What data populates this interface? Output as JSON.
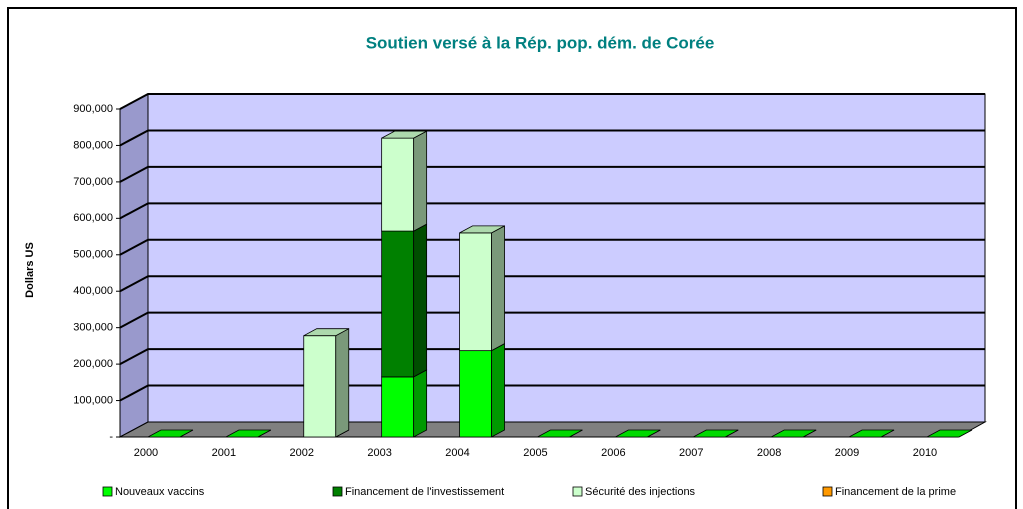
{
  "chart_data": {
    "type": "bar3d_stacked",
    "title": "Soutien versé à la Rép. pop. dém. de Corée",
    "ylabel": "Dollars US",
    "categories": [
      "2000",
      "2001",
      "2002",
      "2003",
      "2004",
      "2005",
      "2006",
      "2007",
      "2008",
      "2009",
      "2010"
    ],
    "series": [
      {
        "name": "Nouveaux vaccins",
        "color": "#00ff00",
        "values": [
          0,
          0,
          0,
          165000,
          237000,
          0,
          0,
          0,
          0,
          0,
          0
        ]
      },
      {
        "name": "Financement de l'investissement",
        "color": "#008000",
        "values": [
          0,
          0,
          0,
          400000,
          0,
          0,
          0,
          0,
          0,
          0,
          0
        ]
      },
      {
        "name": "Sécurité des injections",
        "color": "#ccffcc",
        "values": [
          0,
          0,
          278000,
          255000,
          323000,
          0,
          0,
          0,
          0,
          0,
          0
        ]
      },
      {
        "name": "Financement de la prime",
        "color": "#ff9900",
        "values": [
          0,
          0,
          0,
          0,
          0,
          0,
          0,
          0,
          0,
          0,
          0
        ]
      }
    ],
    "ylim": [
      0,
      900000
    ],
    "yticks": [
      {
        "value": 0,
        "label": "-"
      },
      {
        "value": 100000,
        "label": "100,000"
      },
      {
        "value": 200000,
        "label": "200,000"
      },
      {
        "value": 300000,
        "label": "300,000"
      },
      {
        "value": 400000,
        "label": "400,000"
      },
      {
        "value": 500000,
        "label": "500,000"
      },
      {
        "value": 600000,
        "label": "600,000"
      },
      {
        "value": 700000,
        "label": "700,000"
      },
      {
        "value": 800000,
        "label": "800,000"
      },
      {
        "value": 900000,
        "label": "900,000"
      }
    ],
    "grid": true
  }
}
